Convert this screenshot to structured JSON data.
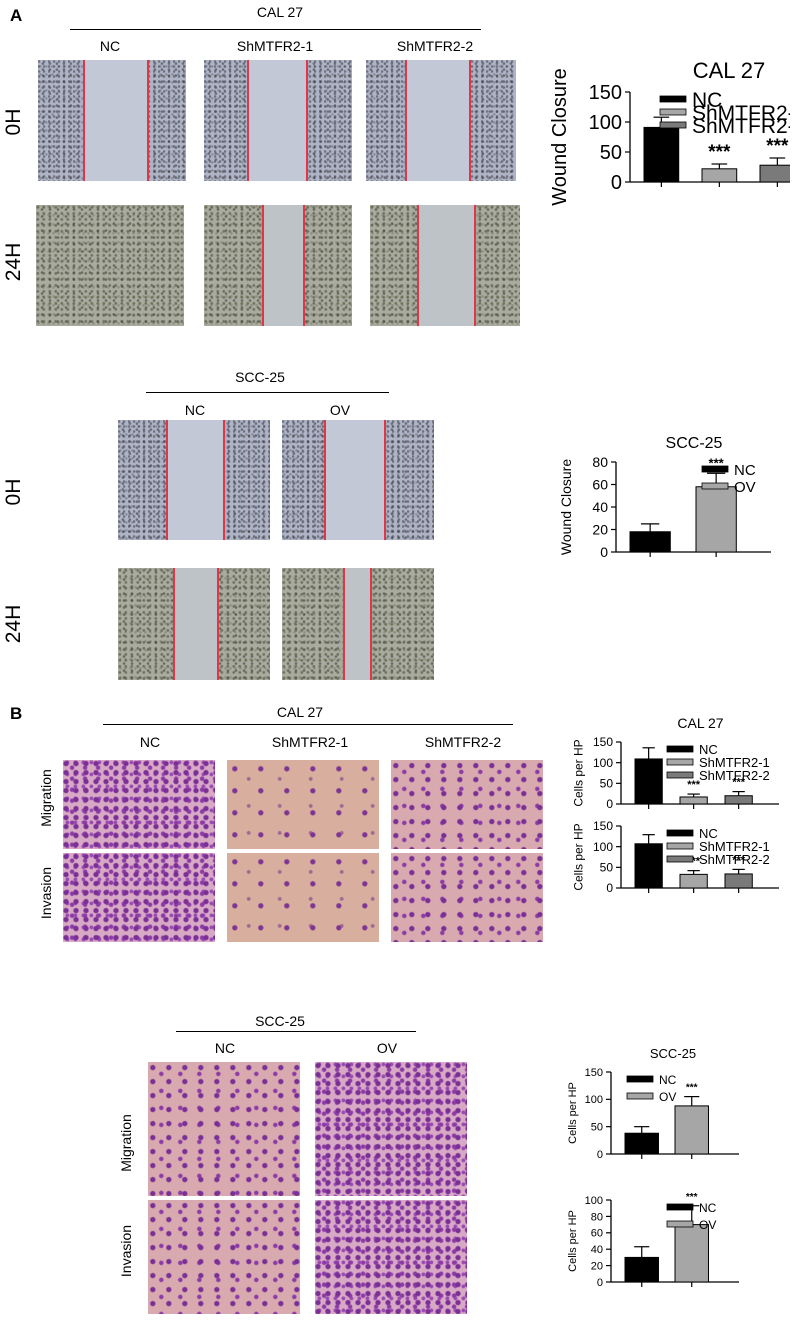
{
  "panels": {
    "A": {
      "letter": "A",
      "cal27": {
        "header": "CAL 27",
        "conditions": [
          "NC",
          "ShMTFR2-1",
          "ShMTFR2-2"
        ],
        "rows": [
          "0H",
          "24H"
        ]
      },
      "scc25": {
        "header": "SCC-25",
        "conditions": [
          "NC",
          "OV"
        ],
        "rows": [
          "0H",
          "24H"
        ]
      }
    },
    "B": {
      "letter": "B",
      "cal27": {
        "header": "CAL 27",
        "conditions": [
          "NC",
          "ShMTFR2-1",
          "ShMTFR2-2"
        ],
        "rows": [
          "Migration",
          "Invasion"
        ]
      },
      "scc25": {
        "header": "SCC-25",
        "conditions": [
          "NC",
          "OV"
        ],
        "rows": [
          "Migration",
          "Invasion"
        ]
      }
    }
  },
  "chart_data": [
    {
      "type": "bar",
      "title": "CAL 27",
      "ylabel": "Wound Closure",
      "ylim": [
        0,
        150
      ],
      "yticks": [
        0,
        50,
        100,
        150
      ],
      "categories": [
        "NC",
        "ShMTFR2-1",
        "ShMTFR2-2"
      ],
      "values": [
        91,
        22,
        28
      ],
      "errors": [
        17,
        8,
        12
      ],
      "significance": [
        "",
        "***",
        "***"
      ],
      "colors": [
        "#000000",
        "#a6a6a6",
        "#7a7a7a"
      ],
      "legend": [
        "NC",
        "ShMTFR2-1",
        "ShMTFR2-2"
      ],
      "legend_position": "top-right"
    },
    {
      "type": "bar",
      "title": "SCC-25",
      "ylabel": "Wound Closure",
      "ylim": [
        0,
        80
      ],
      "yticks": [
        0,
        20,
        40,
        60,
        80
      ],
      "categories": [
        "NC",
        "OV"
      ],
      "values": [
        18,
        58
      ],
      "errors": [
        7,
        12
      ],
      "significance": [
        "",
        "***"
      ],
      "colors": [
        "#000000",
        "#a6a6a6"
      ],
      "legend": [
        "NC",
        "OV"
      ],
      "legend_position": "top-left"
    },
    {
      "type": "bar",
      "title": "CAL 27",
      "ylabel": "Cells per HP",
      "ylim": [
        0,
        150
      ],
      "yticks": [
        0,
        50,
        100,
        150
      ],
      "categories": [
        "NC",
        "ShMTFR2-1",
        "ShMTFR2-2"
      ],
      "values": [
        109,
        17,
        20
      ],
      "errors": [
        27,
        7,
        10
      ],
      "significance": [
        "",
        "***",
        "***"
      ],
      "colors": [
        "#000000",
        "#a6a6a6",
        "#7a7a7a"
      ],
      "legend": [
        "NC",
        "ShMTFR2-1",
        "ShMTFR2-2"
      ],
      "legend_position": "top-right"
    },
    {
      "type": "bar",
      "title": "",
      "ylabel": "Cells per HP",
      "ylim": [
        0,
        150
      ],
      "yticks": [
        0,
        50,
        100,
        150
      ],
      "categories": [
        "NC",
        "ShMTFR2-1",
        "ShMTFR2-2"
      ],
      "values": [
        107,
        33,
        34
      ],
      "errors": [
        22,
        9,
        11
      ],
      "significance": [
        "",
        "***",
        "***"
      ],
      "colors": [
        "#000000",
        "#a6a6a6",
        "#7a7a7a"
      ],
      "legend": [
        "NC",
        "ShMTFR2-1",
        "ShMTFR2-2"
      ],
      "legend_position": "top-right"
    },
    {
      "type": "bar",
      "title": "SCC-25",
      "ylabel": "Cells per HP",
      "ylim": [
        0,
        150
      ],
      "yticks": [
        0,
        50,
        100,
        150
      ],
      "categories": [
        "NC",
        "OV"
      ],
      "values": [
        38,
        88
      ],
      "errors": [
        12,
        17
      ],
      "significance": [
        "",
        "***"
      ],
      "colors": [
        "#000000",
        "#a6a6a6"
      ],
      "legend": [
        "NC",
        "OV"
      ],
      "legend_position": "top-left"
    },
    {
      "type": "bar",
      "title": "",
      "ylabel": "Cells per HP",
      "ylim": [
        0,
        100
      ],
      "yticks": [
        0,
        20,
        40,
        60,
        80,
        100
      ],
      "categories": [
        "NC",
        "OV"
      ],
      "values": [
        30,
        70
      ],
      "errors": [
        13,
        23
      ],
      "significance": [
        "",
        "***"
      ],
      "colors": [
        "#000000",
        "#a6a6a6"
      ],
      "legend": [
        "NC",
        "OV"
      ],
      "legend_position": "top-left"
    }
  ]
}
